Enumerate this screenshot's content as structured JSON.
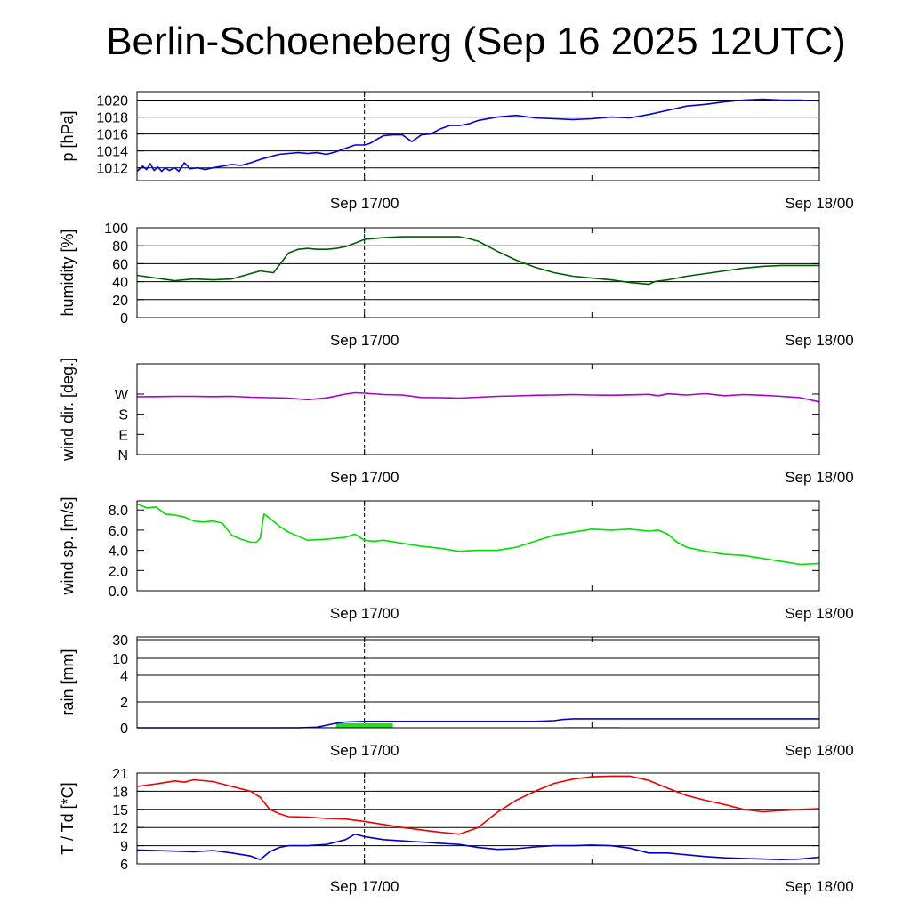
{
  "title": "Berlin-Schoeneberg (Sep 16 2025 12UTC)",
  "chart_data": [
    {
      "type": "line",
      "ylabel": "p [hPa]",
      "ylim": [
        1010.5,
        1021
      ],
      "yticks": [
        1012,
        1014,
        1016,
        1018,
        1020
      ],
      "ytick_labels": [
        "1012",
        "1014",
        "1016",
        "1018",
        "1020"
      ],
      "grid": true,
      "xlim": [
        0,
        36
      ],
      "xtick_labels": [
        {
          "x": 12,
          "label": "Sep 17/00"
        },
        {
          "x": 36,
          "label": "Sep 18/00"
        }
      ],
      "series": [
        {
          "color": "#0000dd",
          "x": [
            0,
            0.3,
            0.5,
            0.7,
            0.9,
            1.1,
            1.3,
            1.5,
            1.7,
            2.0,
            2.2,
            2.5,
            2.8,
            3.2,
            3.6,
            4,
            4.5,
            5,
            5.5,
            6,
            6.5,
            7,
            7.5,
            8,
            8.5,
            9,
            9.5,
            10,
            10.5,
            11,
            11.5,
            12,
            12.3,
            12.6,
            13,
            13.5,
            14,
            14.5,
            15,
            15.5,
            16,
            16.5,
            17,
            17.5,
            18,
            19,
            20,
            21,
            22,
            23,
            24,
            25,
            26,
            27,
            28,
            29,
            30,
            31,
            32,
            33,
            34,
            35,
            36
          ],
          "y": [
            1011.6,
            1012.2,
            1011.8,
            1012.5,
            1011.7,
            1012.1,
            1011.6,
            1012.0,
            1011.7,
            1012.0,
            1011.6,
            1012.6,
            1011.9,
            1012.0,
            1011.8,
            1012.0,
            1012.2,
            1012.4,
            1012.3,
            1012.6,
            1013.0,
            1013.3,
            1013.6,
            1013.7,
            1013.8,
            1013.7,
            1013.8,
            1013.6,
            1013.9,
            1014.3,
            1014.7,
            1014.7,
            1014.9,
            1015.3,
            1015.8,
            1015.9,
            1015.9,
            1015.1,
            1015.9,
            1016.0,
            1016.6,
            1017.0,
            1017.0,
            1017.2,
            1017.6,
            1018.0,
            1018.2,
            1017.9,
            1017.8,
            1017.7,
            1017.8,
            1018.0,
            1017.9,
            1018.3,
            1018.8,
            1019.3,
            1019.5,
            1019.8,
            1020.0,
            1020.1,
            1020.0,
            1020.0,
            1019.9
          ]
        }
      ]
    },
    {
      "type": "line",
      "ylabel": "humidity [%]",
      "ylim": [
        0,
        100
      ],
      "yticks": [
        0,
        20,
        40,
        60,
        80,
        100
      ],
      "ytick_labels": [
        "0",
        "20",
        "40",
        "60",
        "80",
        "100"
      ],
      "grid": true,
      "xlim": [
        0,
        36
      ],
      "xtick_labels": [
        {
          "x": 12,
          "label": "Sep 17/00"
        },
        {
          "x": 36,
          "label": "Sep 18/00"
        }
      ],
      "series": [
        {
          "color": "#005c00",
          "x": [
            0,
            1,
            2,
            3,
            4,
            5,
            6,
            6.5,
            6.8,
            7.2,
            7.6,
            8,
            8.5,
            9,
            9.5,
            10,
            10.5,
            11,
            11.5,
            12,
            13,
            14,
            15,
            16,
            17,
            17.5,
            18,
            19,
            20,
            21,
            22,
            23,
            24,
            25,
            26,
            27,
            27.3,
            28,
            29,
            30,
            31,
            32,
            33,
            34,
            35,
            36
          ],
          "y": [
            47,
            44,
            41,
            43,
            42,
            43,
            49,
            52,
            51,
            50,
            61,
            72,
            76,
            77,
            76,
            76,
            77,
            79,
            83,
            87,
            89,
            90,
            90,
            90,
            90,
            88,
            85,
            74,
            64,
            56,
            50,
            46,
            44,
            42,
            39,
            37,
            40,
            42,
            46,
            49,
            52,
            55,
            57,
            58,
            58,
            58
          ]
        }
      ]
    },
    {
      "type": "line",
      "ylabel": "wind dir. [deg.]",
      "ylim": [
        0,
        405
      ],
      "yticks": [
        0,
        90,
        180,
        270
      ],
      "ytick_labels": [
        "N",
        "E",
        "S",
        "W"
      ],
      "grid": false,
      "xlim": [
        0,
        36
      ],
      "xtick_labels": [
        {
          "x": 12,
          "label": "Sep 17/00"
        },
        {
          "x": 36,
          "label": "Sep 18/00"
        }
      ],
      "series": [
        {
          "color": "#aa00cc",
          "x": [
            0,
            1,
            2,
            3,
            4,
            5,
            6,
            7,
            8,
            9,
            10,
            11,
            11.5,
            12,
            13,
            14,
            15,
            16,
            17,
            18,
            19,
            20,
            21,
            22,
            23,
            24,
            25,
            26,
            27,
            27.5,
            28,
            29,
            30,
            31,
            32,
            33,
            34,
            35,
            36
          ],
          "y": [
            258,
            259,
            260,
            260,
            259,
            260,
            256,
            254,
            252,
            245,
            253,
            270,
            276,
            274,
            268,
            266,
            255,
            254,
            252,
            256,
            260,
            262,
            265,
            266,
            268,
            266,
            265,
            267,
            269,
            263,
            271,
            266,
            272,
            263,
            268,
            265,
            260,
            254,
            235
          ]
        }
      ]
    },
    {
      "type": "line",
      "ylabel": "wind sp. [m/s]",
      "ylim": [
        0,
        8.9
      ],
      "yticks": [
        0,
        2,
        4,
        6,
        8
      ],
      "ytick_labels": [
        "0.0",
        "2.0",
        "4.0",
        "6.0",
        "8.0"
      ],
      "grid": false,
      "xlim": [
        0,
        36
      ],
      "xtick_labels": [
        {
          "x": 12,
          "label": "Sep 17/00"
        },
        {
          "x": 36,
          "label": "Sep 18/00"
        }
      ],
      "series": [
        {
          "color": "#00e000",
          "x": [
            0,
            0.5,
            1,
            1.5,
            2,
            2.5,
            3,
            3.5,
            4,
            4.5,
            5,
            5.5,
            6,
            6.3,
            6.5,
            6.7,
            7,
            7.5,
            8,
            8.5,
            9,
            10,
            11,
            11.5,
            12,
            12.5,
            13,
            14,
            15,
            16,
            17,
            18,
            19,
            20,
            21,
            22,
            23,
            24,
            25,
            26,
            27,
            27.5,
            28,
            28.5,
            29,
            30,
            31,
            32,
            33,
            34,
            35,
            36
          ],
          "y": [
            8.6,
            8.2,
            8.3,
            7.6,
            7.5,
            7.3,
            6.9,
            6.8,
            6.9,
            6.7,
            5.5,
            5.1,
            4.8,
            4.8,
            5.2,
            7.6,
            7.2,
            6.4,
            5.8,
            5.4,
            5.0,
            5.1,
            5.3,
            5.6,
            5.0,
            4.9,
            5.0,
            4.7,
            4.4,
            4.2,
            3.9,
            4.0,
            4.0,
            4.3,
            4.9,
            5.5,
            5.8,
            6.1,
            6.0,
            6.1,
            5.9,
            6.0,
            5.6,
            4.8,
            4.3,
            3.9,
            3.6,
            3.5,
            3.2,
            2.9,
            2.6,
            2.7
          ]
        }
      ]
    },
    {
      "type": "area",
      "ylabel": "rain [mm]",
      "scale": "nonlinear",
      "yticks": [
        0,
        2,
        4,
        10,
        30
      ],
      "ytick_labels": [
        "0",
        "2",
        "4",
        "10",
        "30"
      ],
      "grid": true,
      "xlim": [
        0,
        36
      ],
      "xtick_labels": [
        {
          "x": 12,
          "label": "Sep 17/00"
        },
        {
          "x": 36,
          "label": "Sep 18/00"
        }
      ],
      "bars": [
        {
          "x0": 7.5,
          "x1": 10.5,
          "value": 0.05
        },
        {
          "x0": 10.5,
          "x1": 13.5,
          "value": 0.35
        },
        {
          "x0": 22.5,
          "x1": 25.5,
          "value": 0.05
        }
      ],
      "bar_color": "#22dd22",
      "series": [
        {
          "color": "#0000cc",
          "name": "",
          "x": [
            0,
            8.5,
            9.5,
            10,
            10.5,
            11,
            12,
            15,
            21,
            22,
            22.5,
            23,
            36
          ],
          "y": [
            0,
            0,
            0.05,
            0.2,
            0.35,
            0.45,
            0.5,
            0.5,
            0.5,
            0.55,
            0.65,
            0.7,
            0.7
          ]
        }
      ]
    },
    {
      "type": "line",
      "ylabel": "T / Td [*C]",
      "ylim": [
        6,
        21
      ],
      "yticks": [
        6,
        9,
        12,
        15,
        18,
        21
      ],
      "ytick_labels": [
        "6",
        "9",
        "12",
        "15",
        "18",
        "21"
      ],
      "grid": true,
      "xlim": [
        0,
        36
      ],
      "xtick_labels": [
        {
          "x": 12,
          "label": "Sep 17/00"
        },
        {
          "x": 36,
          "label": "Sep 18/00"
        }
      ],
      "series": [
        {
          "color": "#ee0000",
          "x": [
            0,
            1,
            2,
            2.5,
            3,
            4,
            5,
            6,
            6.5,
            7,
            7.5,
            8,
            9,
            10,
            11,
            12,
            13,
            14,
            15,
            16,
            17,
            18,
            19,
            20,
            21,
            22,
            23,
            24,
            25,
            26,
            27,
            28,
            29,
            30,
            31,
            32,
            33,
            34,
            35,
            36
          ],
          "y": [
            18.8,
            19.2,
            19.7,
            19.5,
            19.9,
            19.6,
            18.8,
            18.0,
            17.0,
            15.0,
            14.3,
            13.8,
            13.7,
            13.5,
            13.4,
            13.0,
            12.5,
            12.0,
            11.6,
            11.2,
            10.9,
            12.0,
            14.5,
            16.5,
            18.0,
            19.3,
            20.0,
            20.4,
            20.5,
            20.5,
            19.8,
            18.5,
            17.3,
            16.5,
            15.8,
            15.0,
            14.6,
            14.8,
            15.0,
            15.1
          ]
        },
        {
          "color": "#0000cc",
          "x": [
            0,
            1,
            2,
            3,
            4,
            5,
            6,
            6.5,
            7,
            7.5,
            8,
            9,
            10,
            11,
            11.5,
            12,
            13,
            14,
            15,
            16,
            17,
            18,
            19,
            20,
            21,
            22,
            23,
            24,
            25,
            26,
            27,
            28,
            29,
            30,
            31,
            32,
            33,
            34,
            35,
            36
          ],
          "y": [
            8.3,
            8.2,
            8.1,
            8.0,
            8.2,
            7.8,
            7.3,
            6.7,
            8.0,
            8.7,
            9.0,
            9.0,
            9.2,
            10.0,
            10.9,
            10.5,
            10.0,
            9.8,
            9.6,
            9.4,
            9.2,
            8.7,
            8.4,
            8.5,
            8.8,
            9.0,
            9.0,
            9.1,
            9.0,
            8.6,
            7.8,
            7.8,
            7.5,
            7.2,
            7.0,
            6.9,
            6.8,
            6.7,
            6.8,
            7.1
          ]
        }
      ]
    }
  ]
}
